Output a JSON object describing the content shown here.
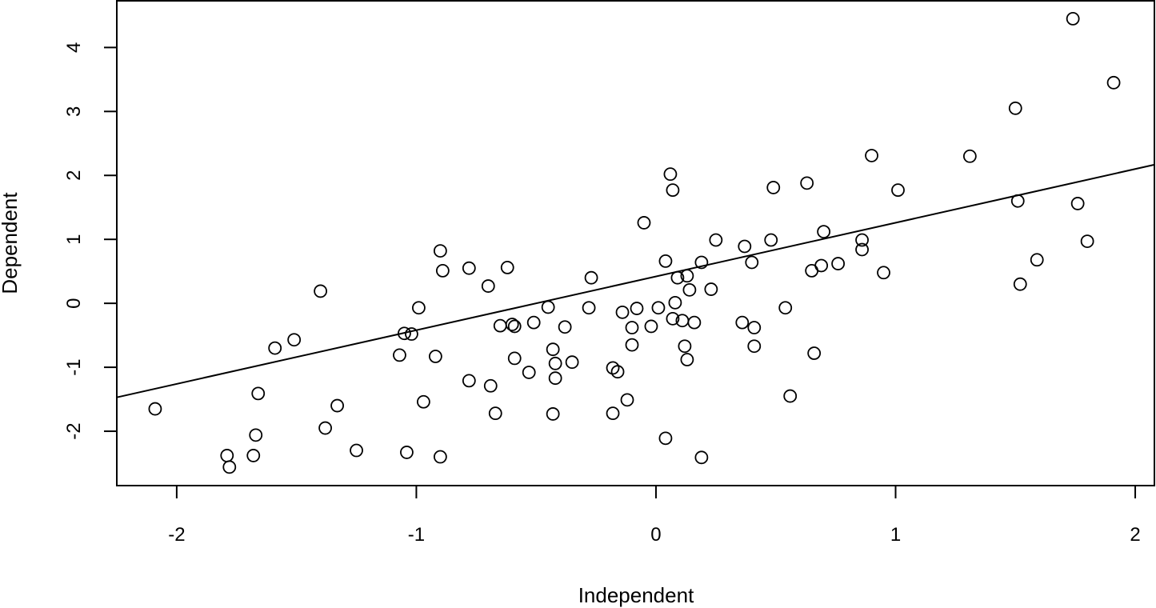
{
  "chart_data": {
    "type": "scatter",
    "xlabel": "Independent",
    "ylabel": "Dependent",
    "xlim": [
      -2.25,
      2.08
    ],
    "ylim": [
      -2.85,
      4.73
    ],
    "x_ticks": [
      -2,
      -1,
      0,
      1,
      2
    ],
    "x_tick_labels": [
      "-2",
      "-1",
      "0",
      "1",
      "2"
    ],
    "y_ticks": [
      -2,
      -1,
      0,
      1,
      2,
      3,
      4
    ],
    "y_tick_labels": [
      "-2",
      "-1",
      "0",
      "1",
      "2",
      "3",
      "4"
    ],
    "grid": false,
    "legend": "none",
    "marker": "open-circle",
    "regression_line": {
      "intercept": 0.42,
      "slope": 0.84
    },
    "points": [
      {
        "x": -2.09,
        "y": -1.65
      },
      {
        "x": -1.79,
        "y": -2.38
      },
      {
        "x": -1.78,
        "y": -2.56
      },
      {
        "x": -1.68,
        "y": -2.38
      },
      {
        "x": -1.67,
        "y": -2.06
      },
      {
        "x": -1.66,
        "y": -1.41
      },
      {
        "x": -1.59,
        "y": -0.7
      },
      {
        "x": -1.51,
        "y": -0.57
      },
      {
        "x": -1.4,
        "y": 0.19
      },
      {
        "x": -1.38,
        "y": -1.95
      },
      {
        "x": -1.33,
        "y": -1.6
      },
      {
        "x": -1.25,
        "y": -2.3
      },
      {
        "x": -1.07,
        "y": -0.81
      },
      {
        "x": -1.05,
        "y": -0.47
      },
      {
        "x": -1.04,
        "y": -2.33
      },
      {
        "x": -1.02,
        "y": -0.48
      },
      {
        "x": -0.99,
        "y": -0.07
      },
      {
        "x": -0.97,
        "y": -1.54
      },
      {
        "x": -0.92,
        "y": -0.83
      },
      {
        "x": -0.9,
        "y": 0.82
      },
      {
        "x": -0.89,
        "y": 0.51
      },
      {
        "x": -0.9,
        "y": -2.4
      },
      {
        "x": -0.78,
        "y": 0.55
      },
      {
        "x": -0.78,
        "y": -1.21
      },
      {
        "x": -0.7,
        "y": 0.27
      },
      {
        "x": -0.69,
        "y": -1.29
      },
      {
        "x": -0.67,
        "y": -1.72
      },
      {
        "x": -0.65,
        "y": -0.35
      },
      {
        "x": -0.62,
        "y": 0.56
      },
      {
        "x": -0.6,
        "y": -0.33
      },
      {
        "x": -0.59,
        "y": -0.36
      },
      {
        "x": -0.59,
        "y": -0.86
      },
      {
        "x": -0.53,
        "y": -1.08
      },
      {
        "x": -0.51,
        "y": -0.3
      },
      {
        "x": -0.45,
        "y": -0.06
      },
      {
        "x": -0.43,
        "y": -0.72
      },
      {
        "x": -0.43,
        "y": -1.73
      },
      {
        "x": -0.42,
        "y": -0.94
      },
      {
        "x": -0.42,
        "y": -1.17
      },
      {
        "x": -0.38,
        "y": -0.37
      },
      {
        "x": -0.35,
        "y": -0.92
      },
      {
        "x": -0.28,
        "y": -0.07
      },
      {
        "x": -0.27,
        "y": 0.4
      },
      {
        "x": -0.18,
        "y": -1.01
      },
      {
        "x": -0.18,
        "y": -1.72
      },
      {
        "x": -0.16,
        "y": -1.07
      },
      {
        "x": -0.14,
        "y": -0.14
      },
      {
        "x": -0.12,
        "y": -1.51
      },
      {
        "x": -0.1,
        "y": -0.38
      },
      {
        "x": -0.1,
        "y": -0.65
      },
      {
        "x": -0.08,
        "y": -0.08
      },
      {
        "x": -0.05,
        "y": 1.26
      },
      {
        "x": -0.02,
        "y": -0.36
      },
      {
        "x": 0.01,
        "y": -0.07
      },
      {
        "x": 0.04,
        "y": 0.66
      },
      {
        "x": 0.04,
        "y": -2.11
      },
      {
        "x": 0.06,
        "y": 2.02
      },
      {
        "x": 0.07,
        "y": 1.77
      },
      {
        "x": 0.07,
        "y": -0.24
      },
      {
        "x": 0.08,
        "y": 0.01
      },
      {
        "x": 0.09,
        "y": 0.4
      },
      {
        "x": 0.11,
        "y": -0.27
      },
      {
        "x": 0.12,
        "y": -0.67
      },
      {
        "x": 0.13,
        "y": 0.43
      },
      {
        "x": 0.13,
        "y": -0.88
      },
      {
        "x": 0.14,
        "y": 0.21
      },
      {
        "x": 0.16,
        "y": -0.3
      },
      {
        "x": 0.19,
        "y": 0.64
      },
      {
        "x": 0.19,
        "y": -2.41
      },
      {
        "x": 0.23,
        "y": 0.22
      },
      {
        "x": 0.25,
        "y": 0.99
      },
      {
        "x": 0.36,
        "y": -0.3
      },
      {
        "x": 0.37,
        "y": 0.89
      },
      {
        "x": 0.4,
        "y": 0.64
      },
      {
        "x": 0.41,
        "y": -0.38
      },
      {
        "x": 0.41,
        "y": -0.67
      },
      {
        "x": 0.48,
        "y": 0.99
      },
      {
        "x": 0.49,
        "y": 1.81
      },
      {
        "x": 0.54,
        "y": -0.07
      },
      {
        "x": 0.56,
        "y": -1.45
      },
      {
        "x": 0.63,
        "y": 1.88
      },
      {
        "x": 0.65,
        "y": 0.51
      },
      {
        "x": 0.66,
        "y": -0.78
      },
      {
        "x": 0.69,
        "y": 0.59
      },
      {
        "x": 0.7,
        "y": 1.12
      },
      {
        "x": 0.76,
        "y": 0.62
      },
      {
        "x": 0.86,
        "y": 0.99
      },
      {
        "x": 0.86,
        "y": 0.84
      },
      {
        "x": 0.9,
        "y": 2.31
      },
      {
        "x": 0.95,
        "y": 0.48
      },
      {
        "x": 1.01,
        "y": 1.77
      },
      {
        "x": 1.31,
        "y": 2.3
      },
      {
        "x": 1.5,
        "y": 3.05
      },
      {
        "x": 1.51,
        "y": 1.6
      },
      {
        "x": 1.52,
        "y": 0.3
      },
      {
        "x": 1.59,
        "y": 0.68
      },
      {
        "x": 1.74,
        "y": 4.45
      },
      {
        "x": 1.76,
        "y": 1.56
      },
      {
        "x": 1.8,
        "y": 0.97
      },
      {
        "x": 1.91,
        "y": 3.45
      }
    ]
  }
}
